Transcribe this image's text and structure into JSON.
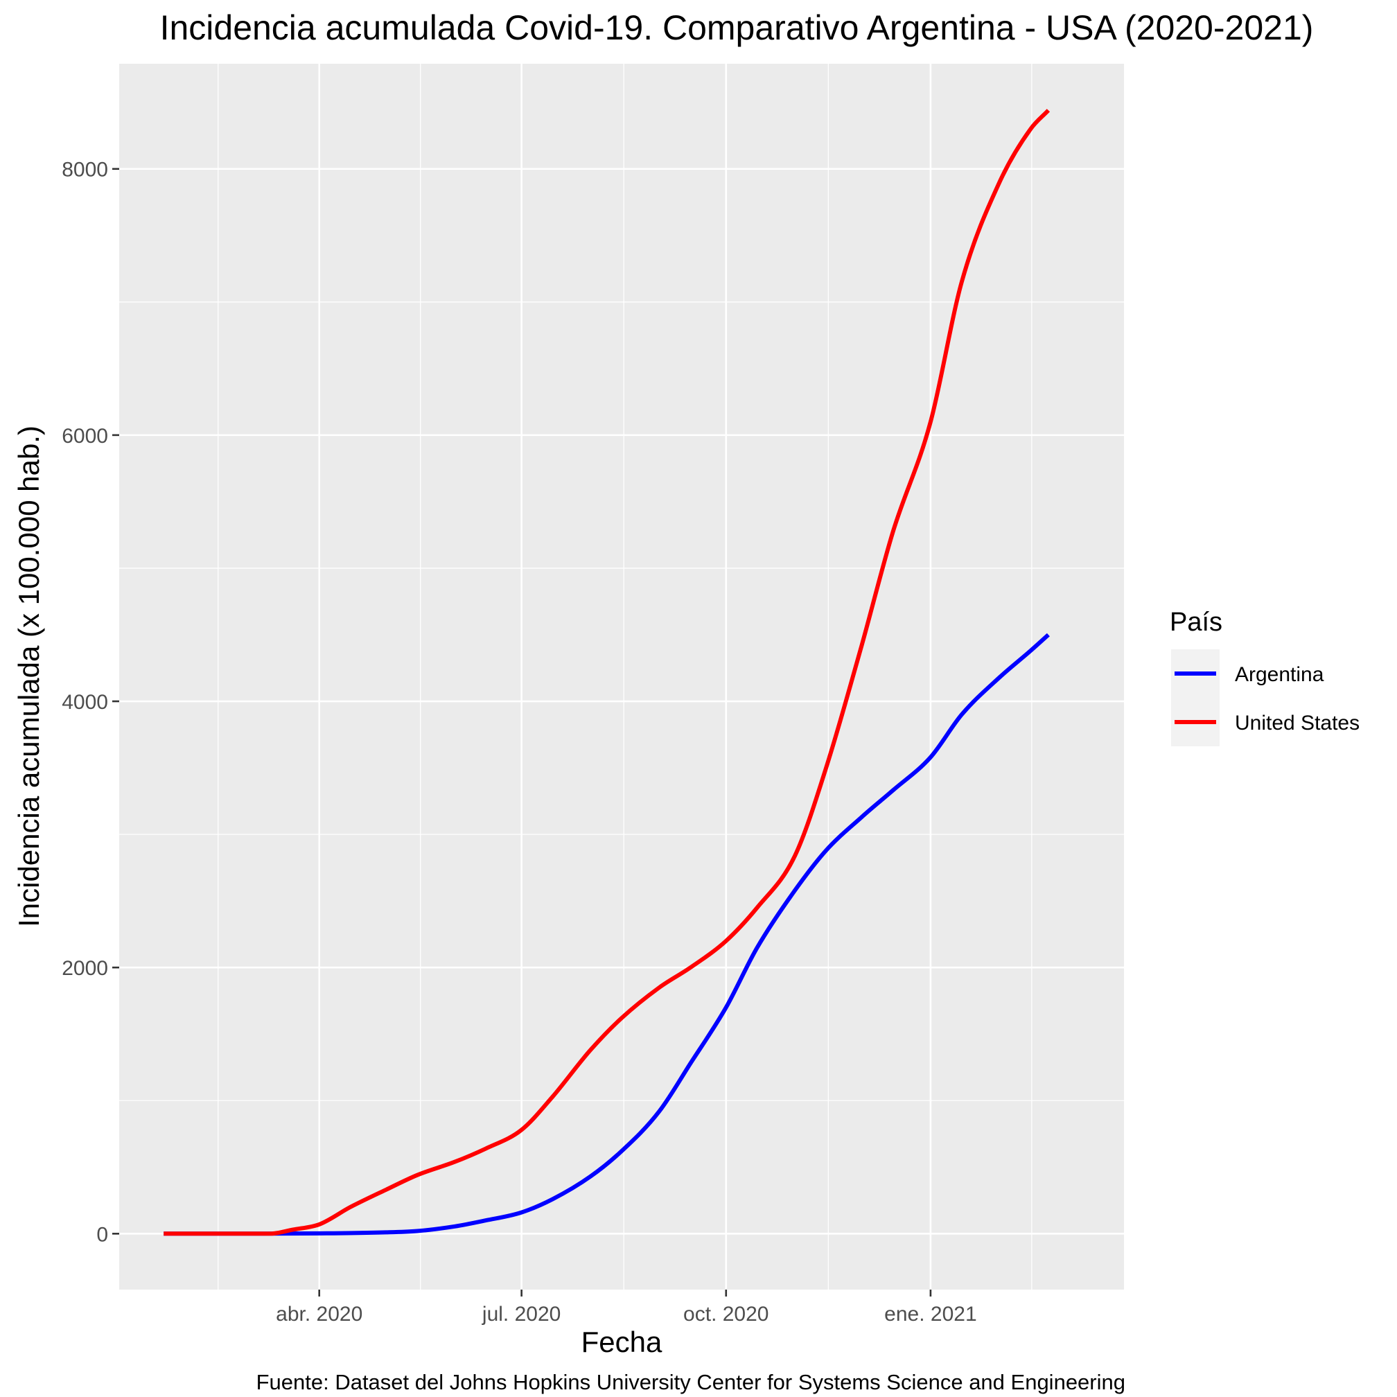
{
  "chart_data": {
    "type": "line",
    "title": "Incidencia acumulada Covid-19. Comparativo Argentina - USA (2020-2021)",
    "xlabel": "Fecha",
    "ylabel": "Incidencia acumulada (x 100.000 hab.)",
    "caption": "Fuente: Dataset del Johns Hopkins University Center for Systems Science and Engineering",
    "x_tick_labels": [
      {
        "date": "2020-04-01",
        "label": "abr. 2020"
      },
      {
        "date": "2020-07-01",
        "label": "jul. 2020"
      },
      {
        "date": "2020-10-01",
        "label": "oct. 2020"
      },
      {
        "date": "2021-01-01",
        "label": "ene. 2021"
      }
    ],
    "y_ticks": [
      0,
      2000,
      4000,
      6000,
      8000
    ],
    "xlim": [
      "2020-01-02",
      "2021-03-29"
    ],
    "ylim": [
      -420,
      8790
    ],
    "grid": true,
    "legend": {
      "title": "País",
      "position": "right"
    },
    "series": [
      {
        "name": "Argentina",
        "color": "#0000ff",
        "points": [
          [
            "2020-01-22",
            0
          ],
          [
            "2020-03-03",
            0
          ],
          [
            "2020-04-01",
            2
          ],
          [
            "2020-05-01",
            10
          ],
          [
            "2020-05-15",
            20
          ],
          [
            "2020-06-01",
            55
          ],
          [
            "2020-06-15",
            100
          ],
          [
            "2020-07-01",
            160
          ],
          [
            "2020-07-15",
            260
          ],
          [
            "2020-08-01",
            430
          ],
          [
            "2020-08-15",
            620
          ],
          [
            "2020-09-01",
            920
          ],
          [
            "2020-09-15",
            1280
          ],
          [
            "2020-10-01",
            1700
          ],
          [
            "2020-10-15",
            2150
          ],
          [
            "2020-11-01",
            2580
          ],
          [
            "2020-11-15",
            2880
          ],
          [
            "2020-12-01",
            3130
          ],
          [
            "2020-12-15",
            3330
          ],
          [
            "2021-01-01",
            3580
          ],
          [
            "2021-01-15",
            3900
          ],
          [
            "2021-02-01",
            4180
          ],
          [
            "2021-02-15",
            4380
          ],
          [
            "2021-02-23",
            4500
          ]
        ]
      },
      {
        "name": "United States",
        "color": "#ff0000",
        "points": [
          [
            "2020-01-22",
            0
          ],
          [
            "2020-03-10",
            0
          ],
          [
            "2020-03-20",
            30
          ],
          [
            "2020-04-01",
            70
          ],
          [
            "2020-04-15",
            200
          ],
          [
            "2020-05-01",
            330
          ],
          [
            "2020-05-15",
            440
          ],
          [
            "2020-06-01",
            540
          ],
          [
            "2020-06-15",
            640
          ],
          [
            "2020-07-01",
            780
          ],
          [
            "2020-07-15",
            1030
          ],
          [
            "2020-08-01",
            1380
          ],
          [
            "2020-08-15",
            1620
          ],
          [
            "2020-09-01",
            1850
          ],
          [
            "2020-09-15",
            2000
          ],
          [
            "2020-10-01",
            2200
          ],
          [
            "2020-10-15",
            2450
          ],
          [
            "2020-11-01",
            2840
          ],
          [
            "2020-11-15",
            3500
          ],
          [
            "2020-12-01",
            4420
          ],
          [
            "2020-12-15",
            5270
          ],
          [
            "2021-01-01",
            6100
          ],
          [
            "2021-01-15",
            7150
          ],
          [
            "2021-02-01",
            7900
          ],
          [
            "2021-02-15",
            8300
          ],
          [
            "2021-02-23",
            8440
          ]
        ]
      }
    ]
  }
}
